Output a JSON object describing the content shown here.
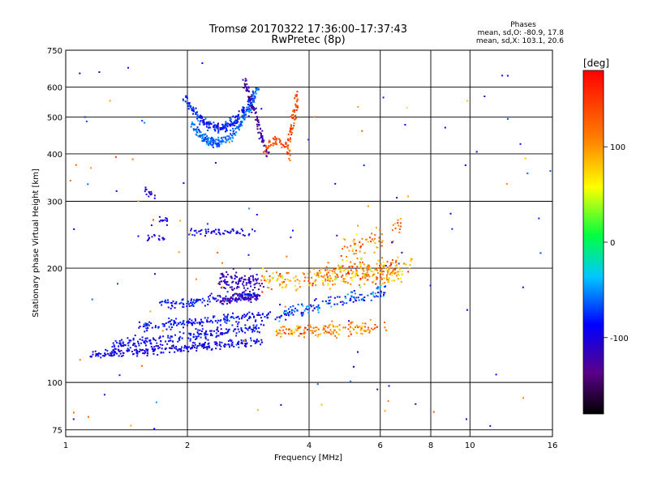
{
  "chart_data": {
    "type": "scatter",
    "title": "Tromsø 20170322 17:36:00–17:37:43",
    "subtitle": "RwPretec (8p)",
    "xlabel": "Frequency [MHz]",
    "ylabel": "Stationary phase Virtual Height [km]",
    "x_scale": "log",
    "y_scale": "log",
    "xlim": [
      1,
      16
    ],
    "ylim": [
      72,
      750
    ],
    "x_ticks": [
      1,
      2,
      4,
      6,
      8,
      10,
      16
    ],
    "x_tick_labels": [
      "1",
      "2",
      "4",
      "6",
      "8",
      "10",
      "16"
    ],
    "y_ticks": [
      75,
      100,
      200,
      300,
      400,
      500,
      600,
      750
    ],
    "y_tick_labels": [
      "75",
      "100",
      "200",
      "300",
      "400",
      "500",
      "600",
      "750"
    ],
    "grid": true,
    "phases_box": {
      "heading": "Phases",
      "line1": "mean, sd,O: -80.9, 17.8",
      "line2": "mean, sd,X: 103.1, 20.6"
    },
    "colorbar": {
      "label": "[deg]",
      "range": [
        -180,
        180
      ],
      "ticks": [
        100,
        0,
        -100
      ],
      "tick_labels": [
        "100",
        "0",
        "-100"
      ]
    },
    "traces": [
      {
        "f0": 1.15,
        "f1": 3.05,
        "h0": 118,
        "h1": 128,
        "curve": 0,
        "phase": -95,
        "sd": 12,
        "n": 260,
        "jitter": 0.012
      },
      {
        "f0": 1.3,
        "f1": 3.1,
        "h0": 125,
        "h1": 140,
        "curve": 0,
        "phase": -90,
        "sd": 12,
        "n": 200,
        "jitter": 0.015
      },
      {
        "f0": 1.5,
        "f1": 3.2,
        "h0": 140,
        "h1": 150,
        "curve": 0,
        "phase": -85,
        "sd": 12,
        "n": 170,
        "jitter": 0.015
      },
      {
        "f0": 1.7,
        "f1": 3.0,
        "h0": 160,
        "h1": 170,
        "curve": 0,
        "phase": -85,
        "sd": 12,
        "n": 130,
        "jitter": 0.015
      },
      {
        "f0": 2.4,
        "f1": 3.05,
        "h0": 185,
        "h1": 185,
        "curve": 0,
        "phase": -115,
        "sd": 10,
        "n": 110,
        "jitter": 0.03
      },
      {
        "f0": 2.4,
        "f1": 3.0,
        "h0": 165,
        "h1": 168,
        "curve": 0,
        "phase": -120,
        "sd": 8,
        "n": 80,
        "jitter": 0.012
      },
      {
        "f0": 3.05,
        "f1": 6.8,
        "h0": 185,
        "h1": 192,
        "curve": 0,
        "phase": 100,
        "sd": 30,
        "n": 230,
        "jitter": 0.03
      },
      {
        "f0": 3.3,
        "f1": 6.2,
        "h0": 150,
        "h1": 175,
        "curve": 0,
        "phase": -70,
        "sd": 25,
        "n": 150,
        "jitter": 0.02
      },
      {
        "f0": 3.3,
        "f1": 6.2,
        "h0": 135,
        "h1": 140,
        "curve": 0,
        "phase": 110,
        "sd": 25,
        "n": 160,
        "jitter": 0.02
      },
      {
        "f0": 4.3,
        "f1": 7.2,
        "h0": 195,
        "h1": 205,
        "curve": 0,
        "phase": 105,
        "sd": 35,
        "n": 120,
        "jitter": 0.03
      },
      {
        "f0": 4.8,
        "f1": 6.8,
        "h0": 220,
        "h1": 260,
        "curve": 0,
        "phase": 110,
        "sd": 30,
        "n": 70,
        "jitter": 0.05
      },
      {
        "f0": 2.0,
        "f1": 2.9,
        "h0": 250,
        "h1": 248,
        "curve": 0,
        "phase": -95,
        "sd": 10,
        "n": 55,
        "jitter": 0.01
      },
      {
        "f0": 1.6,
        "f1": 1.75,
        "h0": 240,
        "h1": 240,
        "curve": 0,
        "phase": -100,
        "sd": 8,
        "n": 15,
        "jitter": 0.01
      },
      {
        "f0": 1.7,
        "f1": 1.8,
        "h0": 268,
        "h1": 265,
        "curve": 0,
        "phase": -100,
        "sd": 8,
        "n": 12,
        "jitter": 0.01
      },
      {
        "f0": 1.55,
        "f1": 1.65,
        "h0": 325,
        "h1": 310,
        "curve": 0,
        "phase": -105,
        "sd": 8,
        "n": 14,
        "jitter": 0.01
      },
      {
        "f0": 1.97,
        "f1": 2.95,
        "h0": 560,
        "h1": 580,
        "curve": -0.55,
        "phase": -80,
        "sd": 12,
        "n": 230,
        "jitter": 0.015
      },
      {
        "f0": 2.05,
        "f1": 3.0,
        "h0": 480,
        "h1": 600,
        "curve": -0.6,
        "phase": -60,
        "sd": 12,
        "n": 230,
        "jitter": 0.015
      },
      {
        "f0": 2.75,
        "f1": 3.15,
        "h0": 640,
        "h1": 400,
        "curve": 0,
        "phase": -125,
        "sd": 12,
        "n": 90,
        "jitter": 0.02
      },
      {
        "f0": 3.1,
        "f1": 3.6,
        "h0": 400,
        "h1": 395,
        "curve": 0.25,
        "phase": 140,
        "sd": 15,
        "n": 60,
        "jitter": 0.02
      },
      {
        "f0": 3.55,
        "f1": 3.75,
        "h0": 420,
        "h1": 580,
        "curve": 0,
        "phase": 140,
        "sd": 15,
        "n": 60,
        "jitter": 0.015
      }
    ],
    "scatter_regions": [
      {
        "f0": 1.02,
        "f1": 16,
        "h0": 75,
        "h1": 700,
        "n": 120,
        "phase": 20,
        "sd": 120
      }
    ]
  }
}
